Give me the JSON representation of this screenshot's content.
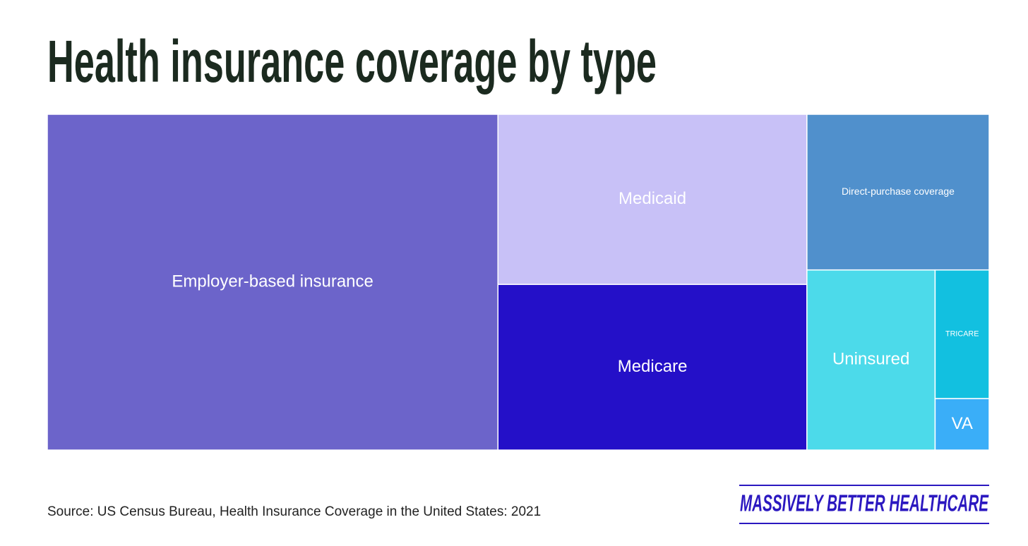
{
  "chart_data": {
    "type": "treemap",
    "title": "Health insurance coverage by type",
    "categories": [
      "Employer-based insurance",
      "Medicaid",
      "Medicare",
      "Direct-purchase coverage",
      "Uninsured",
      "TRICARE",
      "VA"
    ],
    "values": [
      54.4,
      18.9,
      18.4,
      10.2,
      8.3,
      2.5,
      1.0
    ],
    "colors": [
      "#6c64ca",
      "#c8c1f7",
      "#2410c8",
      "#5090cc",
      "#4cdaea",
      "#12c0e0",
      "#3aaef8"
    ]
  },
  "footer": {
    "source": "Source: US Census Bureau, Health Insurance Coverage in the United States: 2021",
    "brand": "MASSIVELY BETTER HEALTHCARE"
  }
}
